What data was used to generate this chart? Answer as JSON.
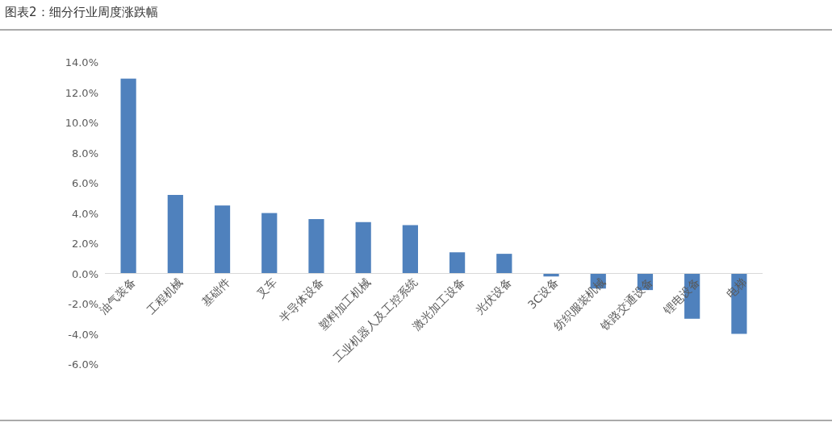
{
  "chart_data": {
    "type": "bar",
    "title": "图表2：细分行业周度涨跌幅",
    "categories": [
      "油气装备",
      "工程机械",
      "基础件",
      "叉车",
      "半导体设备",
      "塑料加工机械",
      "工业机器人及工控系统",
      "激光加工设备",
      "光伏设备",
      "3C设备",
      "纺织服装机械",
      "铁路交通设备",
      "锂电设备",
      "电梯"
    ],
    "values": [
      12.9,
      5.2,
      4.5,
      4.0,
      3.6,
      3.4,
      3.2,
      1.4,
      1.3,
      -0.2,
      -1.0,
      -1.1,
      -3.0,
      -4.0
    ],
    "color": "#4f81bd",
    "ylim": [
      -6,
      14
    ],
    "yticks": [
      {
        "value": -6,
        "label": "-6.0%"
      },
      {
        "value": -4,
        "label": "-4.0%"
      },
      {
        "value": -2,
        "label": "-2.0%"
      },
      {
        "value": 0,
        "label": "0.0%"
      },
      {
        "value": 2,
        "label": "2.0%"
      },
      {
        "value": 4,
        "label": "4.0%"
      },
      {
        "value": 6,
        "label": "6.0%"
      },
      {
        "value": 8,
        "label": "8.0%"
      },
      {
        "value": 10,
        "label": "10.0%"
      },
      {
        "value": 12,
        "label": "12.0%"
      },
      {
        "value": 14,
        "label": "14.0%"
      }
    ],
    "grid": false
  }
}
